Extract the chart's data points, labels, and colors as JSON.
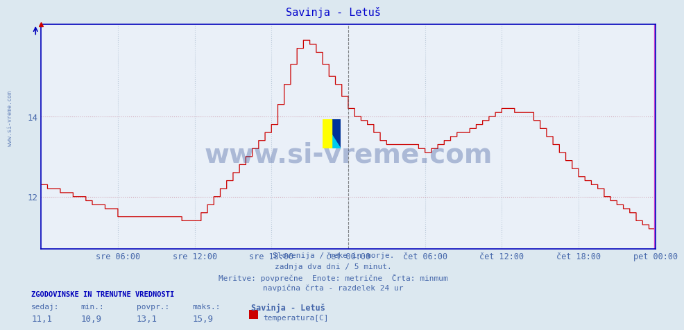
{
  "title": "Savinja - Letuš",
  "bg_color": "#dce8f0",
  "plot_bg_color": "#eaf0f8",
  "line_color": "#cc0000",
  "grid_color_h": "#d0a0b0",
  "grid_color_v": "#b8c8d8",
  "axis_color": "#0000bb",
  "text_color": "#4466aa",
  "title_color": "#0000cc",
  "ylim": [
    10.7,
    16.3
  ],
  "yticks": [
    12,
    14
  ],
  "vertical_line_color_dashed": "#555555",
  "vertical_line_color_solid": "#cc44cc",
  "n_points": 576,
  "x_tick_labels": [
    "sre 06:00",
    "sre 12:00",
    "sre 18:00",
    "čet 00:00",
    "čet 06:00",
    "čet 12:00",
    "čet 18:00",
    "pet 00:00"
  ],
  "x_tick_positions": [
    72,
    144,
    216,
    288,
    360,
    432,
    504,
    576
  ],
  "vertical_line_dashed": 288,
  "vertical_line_solid": 576,
  "footer_lines": [
    "Slovenija / reke in morje.",
    "zadnja dva dni / 5 minut.",
    "Meritve: povprečne  Enote: metrične  Črta: minmum",
    "navpična črta - razdelek 24 ur"
  ],
  "stats_header": "ZGODOVINSKE IN TRENUTNE VREDNOSTI",
  "stats_labels": [
    "sedaj:",
    "min.:",
    "povpr.:",
    "maks.:"
  ],
  "stats_values": [
    "11,1",
    "10,9",
    "13,1",
    "15,9"
  ],
  "legend_station": "Savinja - Letuš",
  "legend_item": "temperatura[C]",
  "legend_color": "#cc0000",
  "watermark_text": "www.si-vreme.com",
  "watermark_color": "#1a3a8a",
  "watermark_alpha": 0.3,
  "sidebar_text": "www.si-vreme.com",
  "sidebar_color": "#4466aa"
}
